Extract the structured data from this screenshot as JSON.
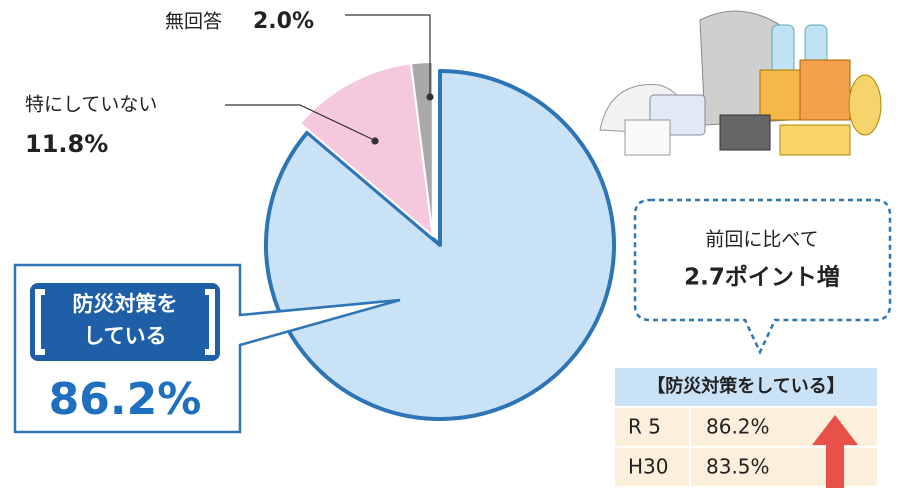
{
  "chart_data": {
    "type": "pie",
    "categories": [
      "防災対策をしている",
      "特にしていない",
      "無回答"
    ],
    "values": [
      86.2,
      11.8,
      2.0
    ],
    "value_labels": [
      "86.2%",
      "11.8%",
      "2.0%"
    ],
    "colors": [
      "#c9e2f6",
      "#f6c8dd",
      "#a9a9a9"
    ],
    "annotation": [
      "前回に比べて",
      "2.7ポイント増"
    ],
    "table": {
      "title": "【防災対策をしている】",
      "rows": [
        [
          "R 5",
          "86.2%"
        ],
        [
          "H30",
          "83.5%"
        ]
      ]
    }
  }
}
